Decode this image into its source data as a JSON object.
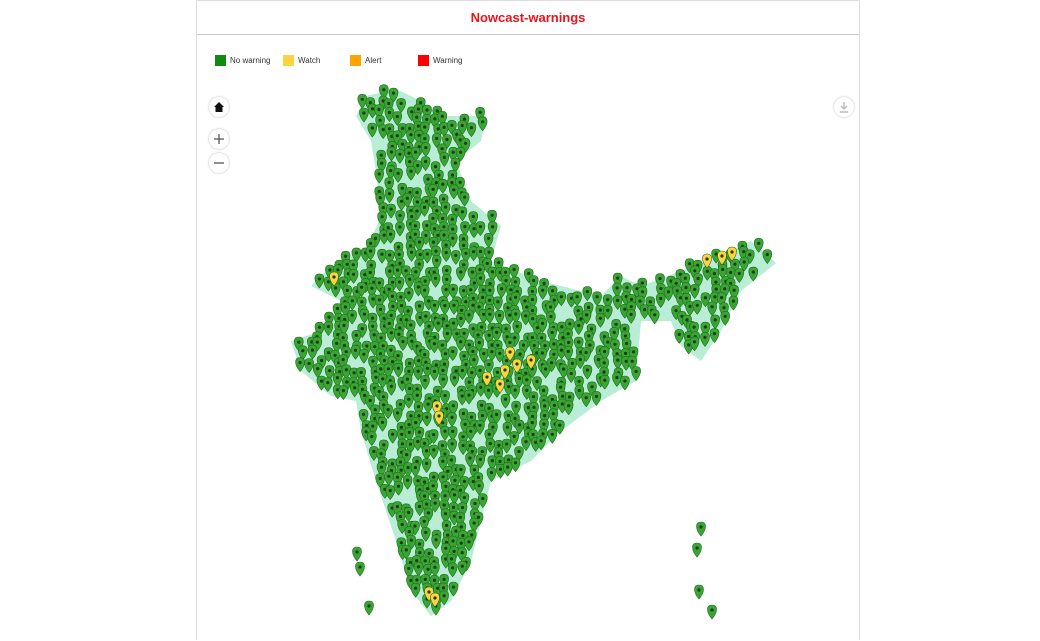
{
  "header": {
    "title": "Nowcast-warnings"
  },
  "legend": [
    {
      "label": "No warning",
      "color": "#108a10"
    },
    {
      "label": "Watch",
      "color": "#ffd23f"
    },
    {
      "label": "Alert",
      "color": "#ffa500"
    },
    {
      "label": "Warning",
      "color": "#ff0000"
    }
  ]
}
